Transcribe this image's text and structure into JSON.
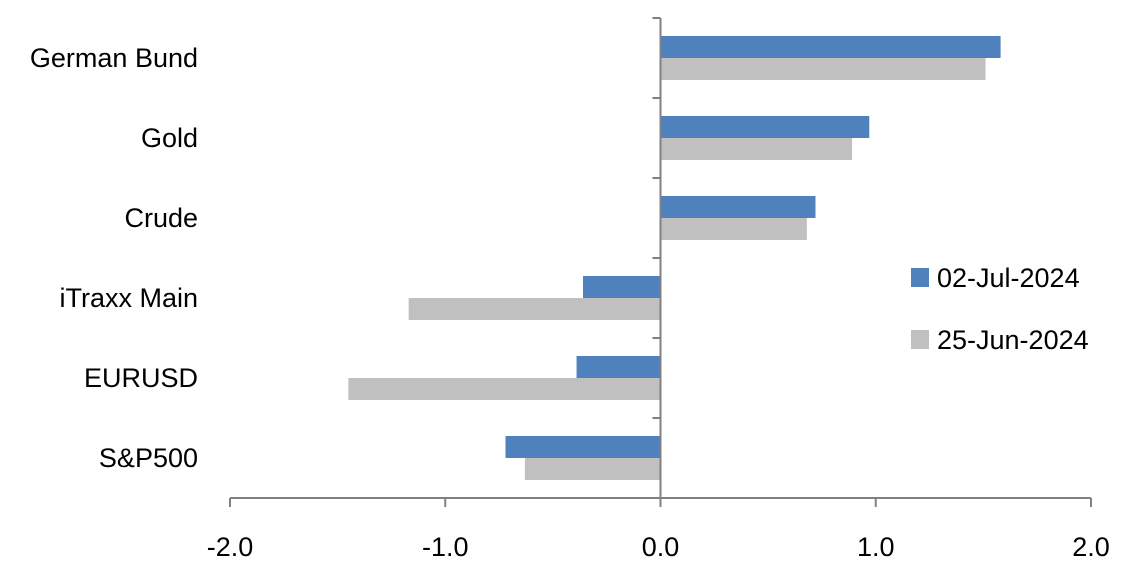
{
  "chart_data": {
    "type": "bar",
    "orientation": "horizontal",
    "categories": [
      "German Bund",
      "Gold",
      "Crude",
      "iTraxx Main",
      "EURUSD",
      "S&P500"
    ],
    "series": [
      {
        "name": "02-Jul-2024",
        "color": "#4f81bd",
        "values": [
          1.58,
          0.97,
          0.72,
          -0.36,
          -0.39,
          -0.72
        ]
      },
      {
        "name": "25-Jun-2024",
        "color": "#c0c0c0",
        "values": [
          1.51,
          0.89,
          0.68,
          -1.17,
          -1.45,
          -0.63
        ]
      }
    ],
    "xlim": [
      -2.0,
      2.0
    ],
    "xticks": [
      "-2.0",
      "-1.0",
      "0.0",
      "1.0",
      "2.0"
    ],
    "grid": false,
    "legend": "right"
  }
}
